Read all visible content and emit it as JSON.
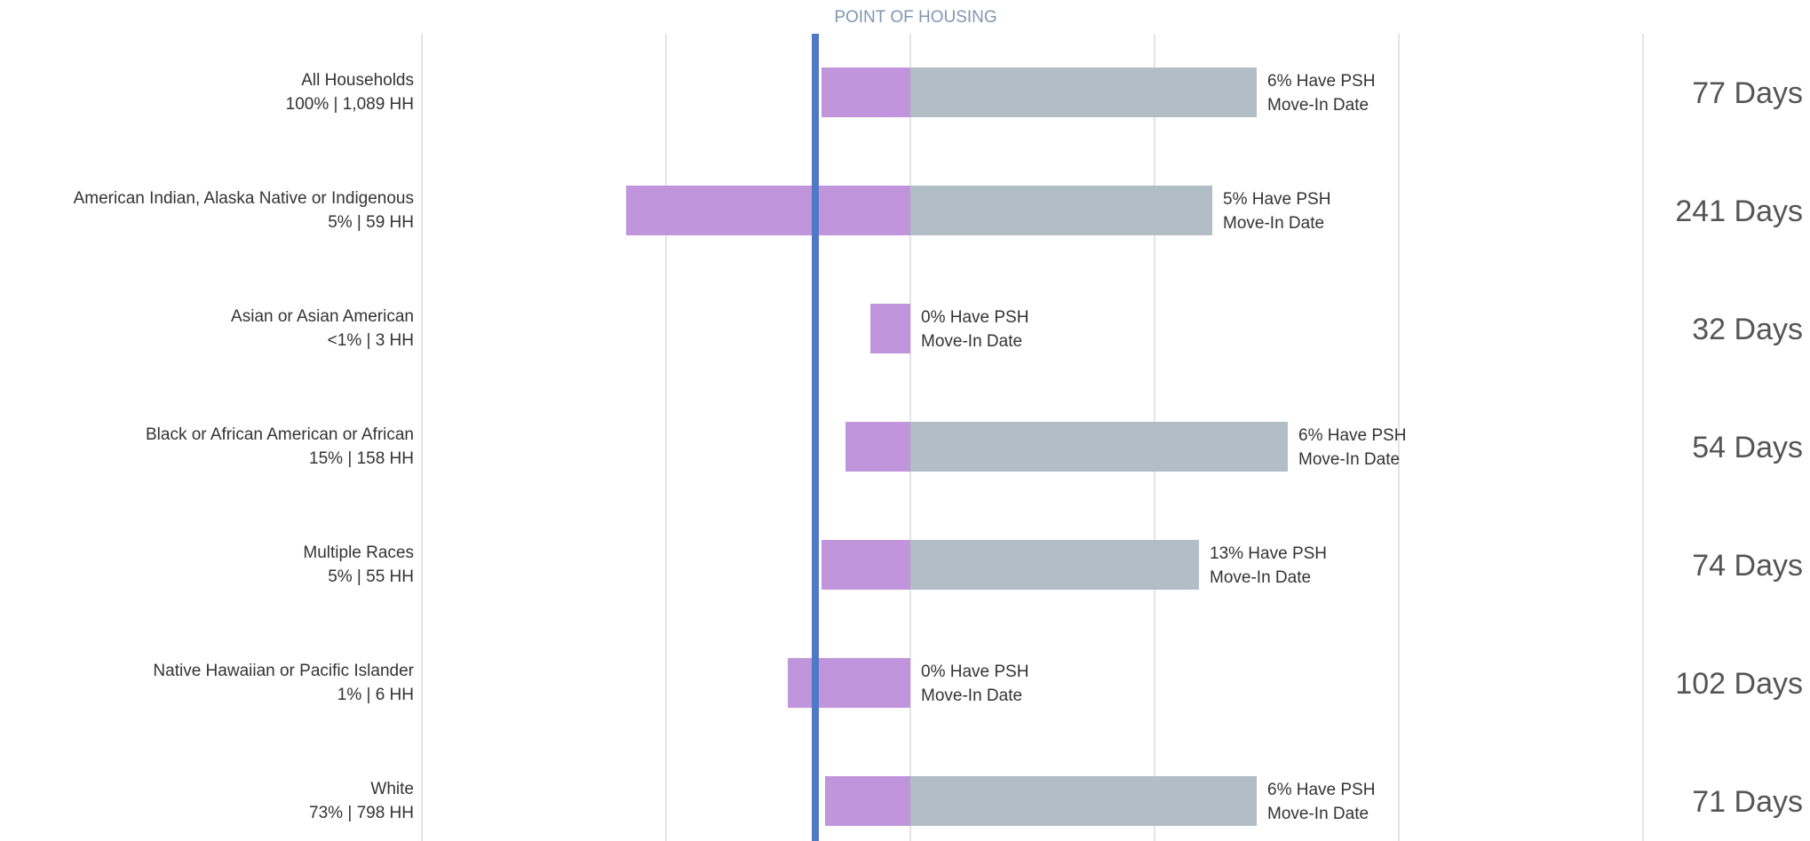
{
  "chart_data": {
    "type": "bar",
    "reference_line_label": "POINT OF HOUSING",
    "colors": {
      "pre_housing": "#c195dc",
      "post_housing": "#b2bec5",
      "reference_line": "#4f79c7",
      "gridline": "#dcdcdc"
    },
    "rows": [
      {
        "category": "All Households",
        "share": "100% | 1,089 HH",
        "pre_value": -1.0,
        "post_value": 3.9,
        "bar_label_line1": "6% Have PSH",
        "bar_label_line2": "Move-In Date",
        "days": "77 Days"
      },
      {
        "category": "American Indian, Alaska Native or Indigenous",
        "share": "5% | 59 HH",
        "pre_value": -3.2,
        "post_value": 3.4,
        "bar_label_line1": "5% Have PSH",
        "bar_label_line2": "Move-In Date",
        "days": "241 Days"
      },
      {
        "category": "Asian or Asian American",
        "share": "<1% | 3 HH",
        "pre_value": -0.45,
        "post_value": 0,
        "bar_label_line1": "0% Have PSH",
        "bar_label_line2": "Move-In Date",
        "days": "32 Days"
      },
      {
        "category": "Black or African American or African",
        "share": "15% | 158 HH",
        "pre_value": -0.73,
        "post_value": 4.25,
        "bar_label_line1": "6% Have PSH",
        "bar_label_line2": "Move-In Date",
        "days": "54 Days"
      },
      {
        "category": "Multiple Races",
        "share": "5% | 55 HH",
        "pre_value": -1.0,
        "post_value": 3.25,
        "bar_label_line1": "13% Have PSH",
        "bar_label_line2": "Move-In Date",
        "days": "74 Days"
      },
      {
        "category": "Native Hawaiian or Pacific Islander",
        "share": "1% | 6 HH",
        "pre_value": -1.38,
        "post_value": 0,
        "bar_label_line1": "0% Have PSH",
        "bar_label_line2": "Move-In Date",
        "days": "102 Days"
      },
      {
        "category": "White",
        "share": "73% | 798 HH",
        "pre_value": -0.96,
        "post_value": 3.9,
        "bar_label_line1": "6% Have PSH",
        "bar_label_line2": "Move-In Date",
        "days": "71 Days"
      }
    ]
  }
}
